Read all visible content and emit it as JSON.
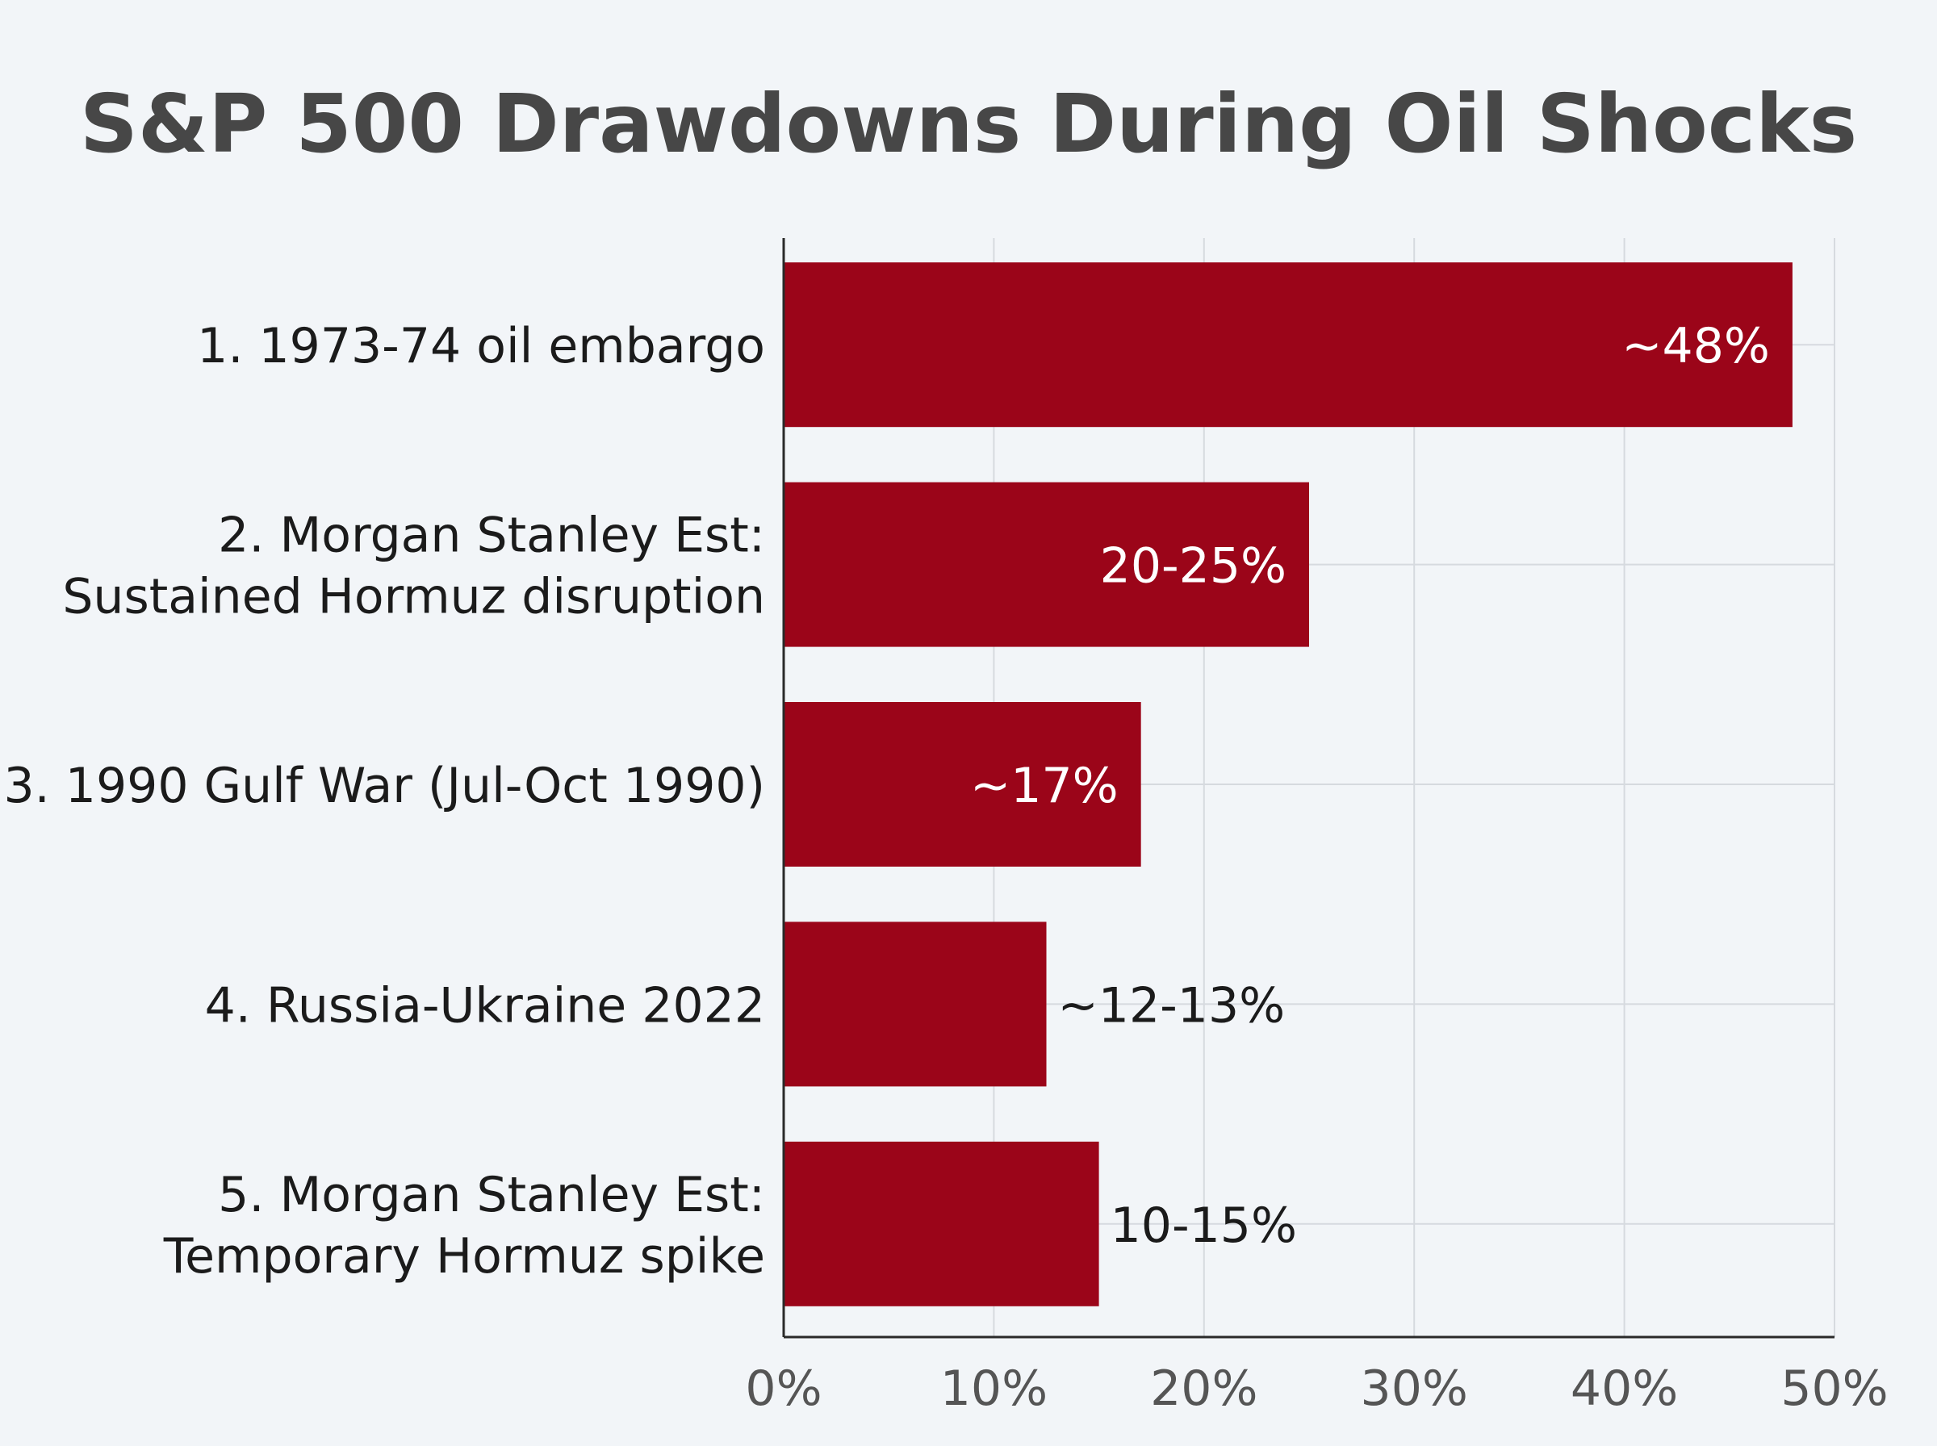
{
  "chart_data": {
    "type": "bar",
    "orientation": "horizontal",
    "title": "S&P 500 Drawdowns During Oil Shocks",
    "xlabel": "",
    "ylabel": "",
    "xlim": [
      0,
      50
    ],
    "x_ticks": [
      0,
      10,
      20,
      30,
      40,
      50
    ],
    "x_tick_labels": [
      "0%",
      "10%",
      "20%",
      "30%",
      "40%",
      "50%"
    ],
    "grid": true,
    "bar_color": "#9b0519",
    "categories": [
      {
        "lines": [
          "1. 1973-74 oil embargo"
        ],
        "value": 48,
        "value_label": "~48%",
        "label_inside": true
      },
      {
        "lines": [
          "2. Morgan Stanley Est:",
          "Sustained Hormuz disruption"
        ],
        "value": 25,
        "value_label": "20-25%",
        "label_inside": true
      },
      {
        "lines": [
          "3. 1990 Gulf War (Jul-Oct 1990)"
        ],
        "value": 17,
        "value_label": "~17%",
        "label_inside": true
      },
      {
        "lines": [
          "4. Russia-Ukraine 2022"
        ],
        "value": 12.5,
        "value_label": "~12-13%",
        "label_inside": false
      },
      {
        "lines": [
          "5. Morgan Stanley Est:",
          "Temporary Hormuz spike"
        ],
        "value": 15,
        "value_label": "10-15%",
        "label_inside": false
      }
    ]
  }
}
